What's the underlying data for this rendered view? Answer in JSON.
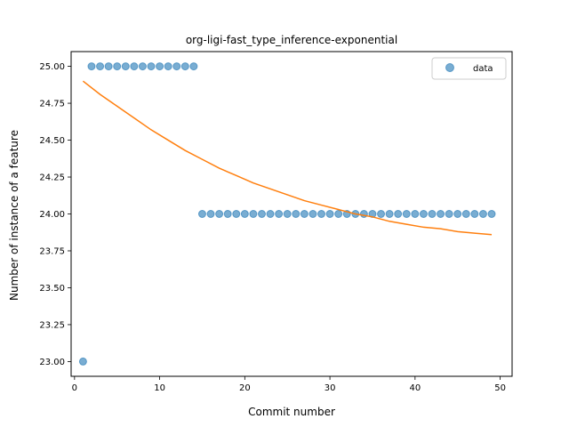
{
  "chart_data": {
    "type": "scatter",
    "title": "org-ligi-fast_type_inference-exponential",
    "xlabel": "Commit number",
    "ylabel": "Number of instance of a feature",
    "xlim": [
      -0.4,
      51.4
    ],
    "ylim": [
      22.9,
      25.1
    ],
    "xticks": [
      0,
      10,
      20,
      30,
      40,
      50
    ],
    "yticks": [
      23.0,
      23.25,
      23.5,
      23.75,
      24.0,
      24.25,
      24.5,
      24.75,
      25.0
    ],
    "ytick_labels": [
      "23.00",
      "23.25",
      "23.50",
      "23.75",
      "24.00",
      "24.25",
      "24.50",
      "24.75",
      "25.00"
    ],
    "grid": false,
    "legend_position": "top-right",
    "series": [
      {
        "name": "data",
        "kind": "scatter",
        "color": "#1f77b4",
        "x": [
          1,
          2,
          3,
          4,
          5,
          6,
          7,
          8,
          9,
          10,
          11,
          12,
          13,
          14,
          15,
          16,
          17,
          18,
          19,
          20,
          21,
          22,
          23,
          24,
          25,
          26,
          27,
          28,
          29,
          30,
          31,
          32,
          33,
          34,
          35,
          36,
          37,
          38,
          39,
          40,
          41,
          42,
          43,
          44,
          45,
          46,
          47,
          48,
          49
        ],
        "y": [
          23,
          25,
          25,
          25,
          25,
          25,
          25,
          25,
          25,
          25,
          25,
          25,
          25,
          25,
          24,
          24,
          24,
          24,
          24,
          24,
          24,
          24,
          24,
          24,
          24,
          24,
          24,
          24,
          24,
          24,
          24,
          24,
          24,
          24,
          24,
          24,
          24,
          24,
          24,
          24,
          24,
          24,
          24,
          24,
          24,
          24,
          24,
          24,
          24
        ]
      },
      {
        "kind": "line",
        "color": "#ff7f0e",
        "x": [
          1,
          3,
          5,
          7,
          9,
          11,
          13,
          15,
          17,
          19,
          21,
          23,
          25,
          27,
          29,
          31,
          33,
          35,
          37,
          39,
          41,
          43,
          45,
          47,
          49
        ],
        "y": [
          24.9,
          24.81,
          24.73,
          24.65,
          24.57,
          24.5,
          24.43,
          24.37,
          24.31,
          24.26,
          24.21,
          24.17,
          24.13,
          24.09,
          24.06,
          24.03,
          24.0,
          23.98,
          23.95,
          23.93,
          23.91,
          23.9,
          23.88,
          23.87,
          23.86
        ]
      }
    ],
    "legend": {
      "label": "data"
    }
  }
}
